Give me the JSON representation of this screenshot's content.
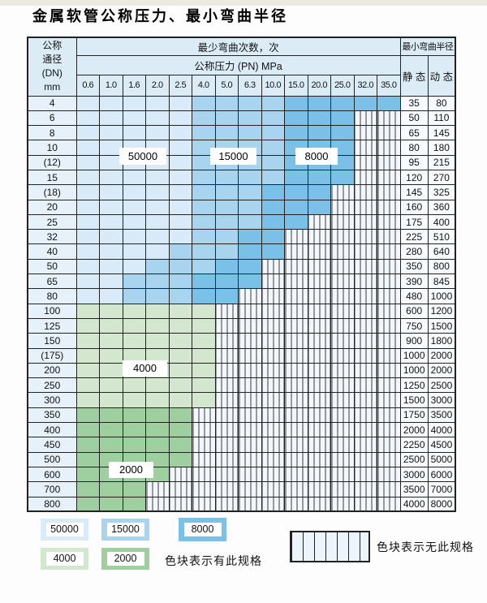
{
  "title": "金属软管公称压力、最小弯曲半径",
  "colors": {
    "grid": "#222222",
    "header_bg": "#dcecf6",
    "dn_bg": "#e6f1fa",
    "value_bg": "#f7fbfe",
    "striped_bg": "#f1f7fc",
    "stripe_line": "#3a3a3a",
    "zones": {
      "50000": "#d9ebf8",
      "15000": "#a9d4ef",
      "8000": "#7bc0e6",
      "4000": "#d3e7cf",
      "2000": "#9ed09f"
    }
  },
  "table": {
    "header": {
      "dn_lines": [
        "公称",
        "通径",
        "(DN)",
        "mm"
      ],
      "bend_cycles": "最少弯曲次数，次",
      "pressure": "公称压力 (PN) MPa",
      "pressure_values": [
        "0.6",
        "1.0",
        "1.6",
        "2.0",
        "2.5",
        "4.0",
        "5.0",
        "6.3",
        "10.0",
        "15.0",
        "20.0",
        "25.0",
        "32.0",
        "35.0"
      ],
      "bend_radius": "最小弯曲半径",
      "static_label": "静 态",
      "dynamic_label": "动 态"
    },
    "rows": [
      {
        "dn": "4",
        "static": "35",
        "dynamic": "80",
        "segments": [
          [
            "50000",
            5
          ],
          [
            "15000",
            4
          ],
          [
            "8000",
            5
          ]
        ]
      },
      {
        "dn": "6",
        "static": "50",
        "dynamic": "110",
        "segments": [
          [
            "50000",
            5
          ],
          [
            "15000",
            4
          ],
          [
            "8000",
            3
          ]
        ]
      },
      {
        "dn": "8",
        "static": "65",
        "dynamic": "145",
        "segments": [
          [
            "50000",
            5
          ],
          [
            "15000",
            4
          ],
          [
            "8000",
            3
          ]
        ]
      },
      {
        "dn": "10",
        "static": "80",
        "dynamic": "180",
        "segments": [
          [
            "50000",
            5
          ],
          [
            "15000",
            4
          ],
          [
            "8000",
            3
          ]
        ]
      },
      {
        "dn": "(12)",
        "static": "95",
        "dynamic": "215",
        "segments": [
          [
            "50000",
            5
          ],
          [
            "15000",
            4
          ],
          [
            "8000",
            3
          ]
        ]
      },
      {
        "dn": "15",
        "static": "120",
        "dynamic": "270",
        "segments": [
          [
            "50000",
            5
          ],
          [
            "15000",
            4
          ],
          [
            "8000",
            3
          ]
        ]
      },
      {
        "dn": "(18)",
        "static": "145",
        "dynamic": "325",
        "segments": [
          [
            "50000",
            5
          ],
          [
            "15000",
            3
          ],
          [
            "8000",
            3
          ]
        ]
      },
      {
        "dn": "20",
        "static": "160",
        "dynamic": "360",
        "segments": [
          [
            "50000",
            5
          ],
          [
            "15000",
            3
          ],
          [
            "8000",
            3
          ]
        ]
      },
      {
        "dn": "25",
        "static": "175",
        "dynamic": "400",
        "segments": [
          [
            "50000",
            5
          ],
          [
            "15000",
            3
          ],
          [
            "8000",
            2
          ]
        ]
      },
      {
        "dn": "32",
        "static": "225",
        "dynamic": "510",
        "segments": [
          [
            "50000",
            5
          ],
          [
            "15000",
            2
          ],
          [
            "8000",
            2
          ]
        ]
      },
      {
        "dn": "40",
        "static": "280",
        "dynamic": "640",
        "segments": [
          [
            "50000",
            4
          ],
          [
            "15000",
            3
          ],
          [
            "8000",
            2
          ]
        ]
      },
      {
        "dn": "50",
        "static": "350",
        "dynamic": "800",
        "segments": [
          [
            "50000",
            3
          ],
          [
            "15000",
            3
          ],
          [
            "8000",
            2
          ]
        ]
      },
      {
        "dn": "65",
        "static": "390",
        "dynamic": "845",
        "segments": [
          [
            "50000",
            2
          ],
          [
            "15000",
            3
          ],
          [
            "8000",
            3
          ]
        ]
      },
      {
        "dn": "80",
        "static": "480",
        "dynamic": "1000",
        "segments": [
          [
            "50000",
            2
          ],
          [
            "15000",
            3
          ],
          [
            "8000",
            2
          ]
        ]
      },
      {
        "dn": "100",
        "static": "600",
        "dynamic": "1200",
        "segments": [
          [
            "4000",
            6
          ]
        ]
      },
      {
        "dn": "125",
        "static": "750",
        "dynamic": "1500",
        "segments": [
          [
            "4000",
            6
          ]
        ]
      },
      {
        "dn": "150",
        "static": "900",
        "dynamic": "1800",
        "segments": [
          [
            "4000",
            6
          ]
        ]
      },
      {
        "dn": "(175)",
        "static": "1000",
        "dynamic": "2000",
        "segments": [
          [
            "4000",
            6
          ]
        ]
      },
      {
        "dn": "200",
        "static": "1000",
        "dynamic": "2000",
        "segments": [
          [
            "4000",
            6
          ]
        ]
      },
      {
        "dn": "250",
        "static": "1250",
        "dynamic": "2500",
        "segments": [
          [
            "4000",
            6
          ]
        ]
      },
      {
        "dn": "300",
        "static": "1500",
        "dynamic": "3000",
        "segments": [
          [
            "4000",
            6
          ]
        ]
      },
      {
        "dn": "350",
        "static": "1750",
        "dynamic": "3500",
        "segments": [
          [
            "2000",
            5
          ]
        ]
      },
      {
        "dn": "400",
        "static": "2000",
        "dynamic": "4000",
        "segments": [
          [
            "2000",
            5
          ]
        ]
      },
      {
        "dn": "450",
        "static": "2250",
        "dynamic": "4500",
        "segments": [
          [
            "2000",
            5
          ]
        ]
      },
      {
        "dn": "500",
        "static": "2500",
        "dynamic": "5000",
        "segments": [
          [
            "2000",
            5
          ]
        ]
      },
      {
        "dn": "600",
        "static": "3000",
        "dynamic": "6000",
        "segments": [
          [
            "2000",
            4
          ]
        ]
      },
      {
        "dn": "700",
        "static": "3500",
        "dynamic": "7000",
        "segments": [
          [
            "2000",
            3
          ]
        ]
      },
      {
        "dn": "800",
        "static": "4000",
        "dynamic": "8000",
        "segments": [
          [
            "2000",
            3
          ]
        ]
      }
    ]
  },
  "zone_labels": [
    "50000",
    "15000",
    "8000",
    "4000",
    "2000"
  ],
  "legend": {
    "items": [
      "50000",
      "15000",
      "8000",
      "4000",
      "2000"
    ],
    "has_spec_text": "色块表示有此规格",
    "no_spec_text": "色块表示无此规格"
  }
}
